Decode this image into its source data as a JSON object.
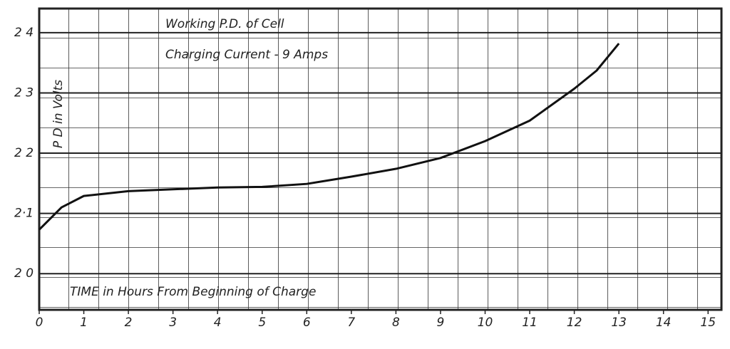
{
  "chart_data": {
    "type": "line",
    "annotations": [
      "Working P.D. of Cell",
      "Charging Current - 9 Amps"
    ],
    "y_label": "P D in Volts",
    "x_label": "TIME in Hours From Beginning of Charge",
    "x": [
      0,
      0.5,
      1,
      2,
      3,
      4,
      5,
      6,
      7,
      8,
      9,
      10,
      11,
      12,
      12.5,
      13
    ],
    "series": [
      {
        "color": "#111111",
        "values": [
          2.073,
          2.11,
          2.129,
          2.137,
          2.14,
          2.143,
          2.144,
          2.149,
          2.161,
          2.174,
          2.192,
          2.22,
          2.254,
          2.307,
          2.337,
          2.382
        ]
      }
    ],
    "xlim": [
      0,
      15.3
    ],
    "xticks": [
      0,
      1,
      2,
      3,
      4,
      5,
      6,
      7,
      8,
      9,
      10,
      11,
      12,
      13,
      14,
      15
    ],
    "ylim": [
      1.94,
      2.44
    ],
    "yticks": [
      {
        "value": 2.0,
        "label": "2 0"
      },
      {
        "value": 2.1,
        "label": "2·1"
      },
      {
        "value": 2.2,
        "label": "2 2"
      },
      {
        "value": 2.3,
        "label": "2 3"
      },
      {
        "value": 2.4,
        "label": "2 4"
      }
    ],
    "grid": true
  }
}
